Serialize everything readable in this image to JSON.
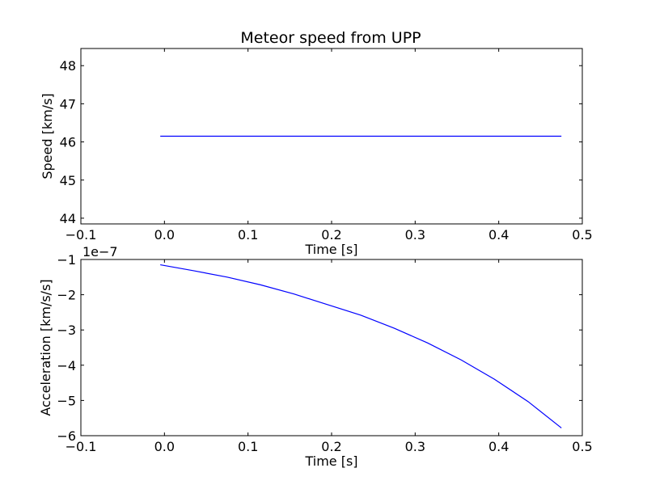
{
  "figure": {
    "title": "Meteor speed from  UPP",
    "background": "#ffffff"
  },
  "chart_data": [
    {
      "type": "line",
      "title": "Meteor speed from  UPP",
      "xlabel": "Time [s]",
      "ylabel": "Speed [km/s]",
      "xlim": [
        -0.1,
        0.5
      ],
      "ylim": [
        43.85,
        48.45
      ],
      "xticks": [
        -0.1,
        0.0,
        0.1,
        0.2,
        0.3,
        0.4,
        0.5
      ],
      "xtick_labels": [
        "−0.1",
        "0.0",
        "0.1",
        "0.2",
        "0.3",
        "0.4",
        "0.5"
      ],
      "yticks": [
        44,
        45,
        46,
        47,
        48
      ],
      "ytick_labels": [
        "44",
        "45",
        "46",
        "47",
        "48"
      ],
      "offset_text": "",
      "grid": false,
      "series": [
        {
          "color": "#0000ff",
          "x": [
            -0.005,
            0.475
          ],
          "y": [
            46.15,
            46.15
          ]
        }
      ]
    },
    {
      "type": "line",
      "title": "",
      "xlabel": "Time [s]",
      "ylabel": "Acceleration [km/s/s]",
      "xlim": [
        -0.1,
        0.5
      ],
      "ylim": [
        -6,
        -1
      ],
      "xticks": [
        -0.1,
        0.0,
        0.1,
        0.2,
        0.3,
        0.4,
        0.5
      ],
      "xtick_labels": [
        "−0.1",
        "0.0",
        "0.1",
        "0.2",
        "0.3",
        "0.4",
        "0.5"
      ],
      "yticks": [
        -6,
        -5,
        -4,
        -3,
        -2,
        -1
      ],
      "ytick_labels": [
        "−6",
        "−5",
        "−4",
        "−3",
        "−2",
        "−1"
      ],
      "offset_text": "1e−7",
      "grid": false,
      "series": [
        {
          "color": "#0000ff",
          "x": [
            -0.005,
            0.035,
            0.075,
            0.115,
            0.155,
            0.195,
            0.235,
            0.275,
            0.315,
            0.355,
            0.395,
            0.435,
            0.475
          ],
          "y": [
            -1.15,
            -1.32,
            -1.5,
            -1.72,
            -1.98,
            -2.28,
            -2.58,
            -2.95,
            -3.37,
            -3.85,
            -4.4,
            -5.03,
            -5.78
          ]
        }
      ]
    }
  ]
}
